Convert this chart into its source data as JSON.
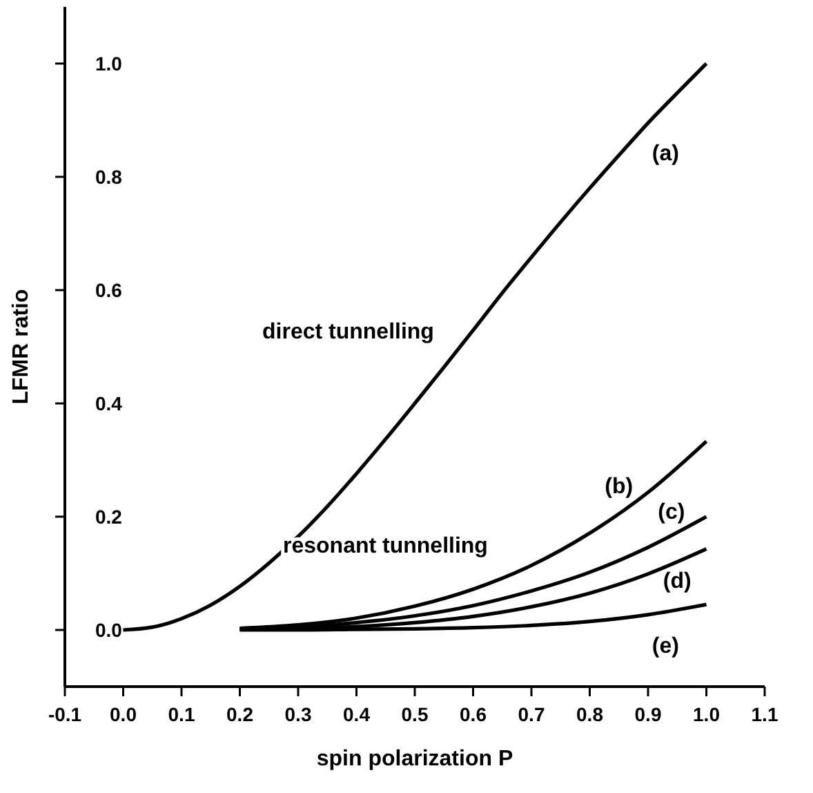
{
  "chart_data": {
    "type": "line",
    "xlabel": "spin polarization P",
    "ylabel": "LFMR ratio",
    "xlim": [
      -0.1,
      1.1
    ],
    "ylim": [
      -0.1,
      1.1
    ],
    "xticks": [
      -0.1,
      {
        "value": 0,
        "label": "0.0"
      },
      0.1,
      0.2,
      0.3,
      0.4,
      0.5,
      0.6,
      0.7,
      0.8,
      0.9,
      {
        "value": 1,
        "label": "1.0"
      },
      1.1
    ],
    "yticks": [
      {
        "value": 0,
        "label": "0.0"
      },
      0.2,
      0.4,
      0.6,
      0.8,
      {
        "value": 1,
        "label": "1.0"
      }
    ],
    "grid": false,
    "marker": "none",
    "line_style": "solid",
    "series": [
      {
        "name": "(a)",
        "color": "#000000",
        "x": [
          0,
          0.05,
          0.1,
          0.15,
          0.2,
          0.25,
          0.3,
          0.35,
          0.4,
          0.45,
          0.5,
          0.55,
          0.6,
          0.65,
          0.7,
          0.75,
          0.8,
          0.85,
          0.9,
          0.95,
          1.0
        ],
        "values": [
          0,
          0.005,
          0.02,
          0.044,
          0.077,
          0.118,
          0.165,
          0.218,
          0.276,
          0.337,
          0.4,
          0.464,
          0.529,
          0.595,
          0.658,
          0.72,
          0.78,
          0.838,
          0.895,
          0.948,
          1.0
        ]
      },
      {
        "color": "#000000",
        "x": [
          0.2,
          0.3,
          0.4,
          0.5,
          0.6,
          0.7,
          0.8,
          0.9,
          1.0
        ],
        "name": "(b)",
        "values": [
          0.003,
          0.009,
          0.021,
          0.042,
          0.072,
          0.114,
          0.171,
          0.243,
          0.333
        ]
      },
      {
        "color": "#000000",
        "x": [
          0.2,
          0.3,
          0.4,
          0.5,
          0.6,
          0.7,
          0.8,
          0.9,
          1.0
        ],
        "name": "(c)",
        "values": [
          0.002,
          0.005,
          0.013,
          0.025,
          0.043,
          0.069,
          0.102,
          0.146,
          0.2
        ]
      },
      {
        "color": "#000000",
        "x": [
          0.2,
          0.3,
          0.4,
          0.5,
          0.6,
          0.7,
          0.8,
          0.9,
          1.0
        ],
        "name": "(d)",
        "values": [
          0.001,
          0.002,
          0.006,
          0.013,
          0.024,
          0.041,
          0.065,
          0.099,
          0.143
        ]
      },
      {
        "color": "#000000",
        "x": [
          0.2,
          0.3,
          0.4,
          0.5,
          0.6,
          0.7,
          0.8,
          0.9,
          1.0
        ],
        "name": "(e)",
        "values": [
          0,
          0,
          0.001,
          0.002,
          0.004,
          0.008,
          0.015,
          0.027,
          0.045
        ]
      }
    ],
    "annotations": [
      "direct tunnelling",
      "resonant tunnelling"
    ]
  }
}
